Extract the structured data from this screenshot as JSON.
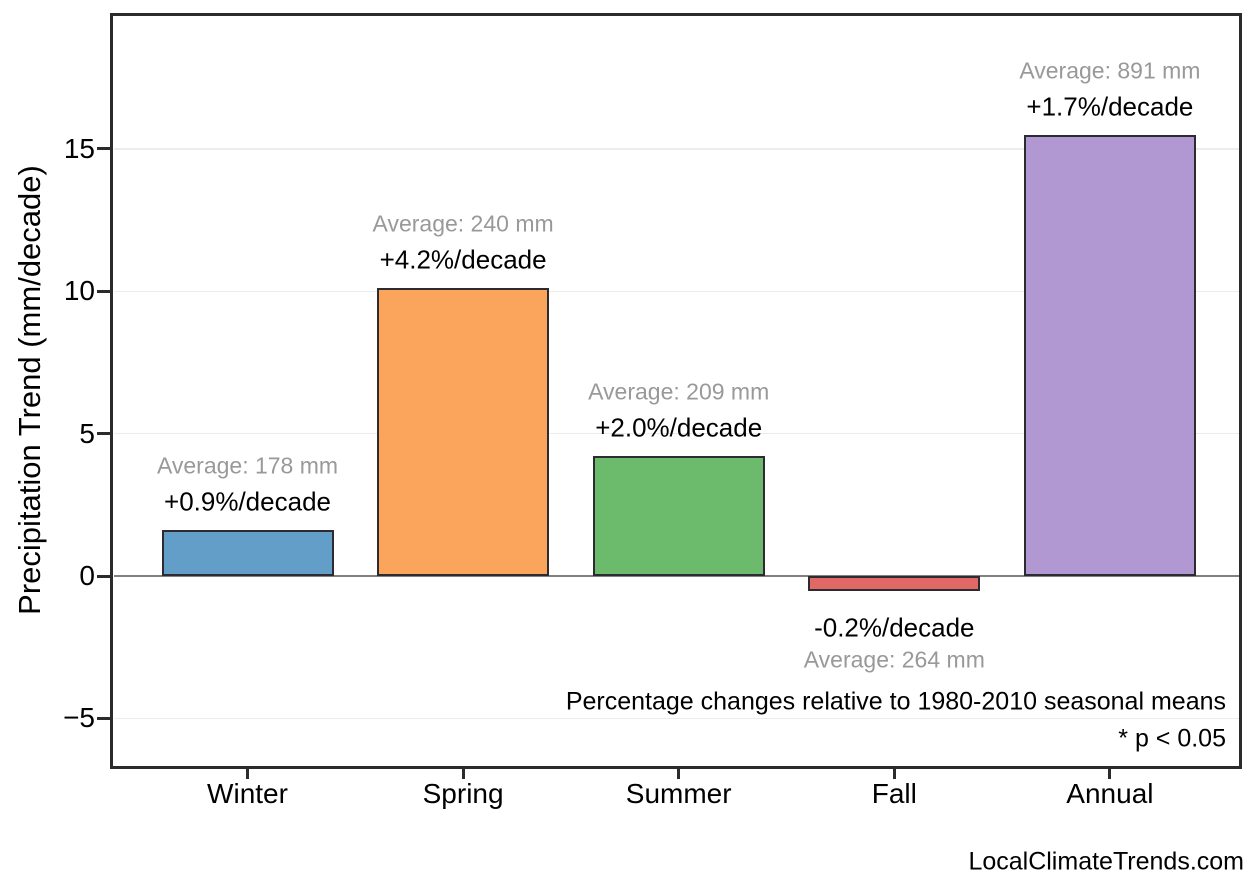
{
  "chart_data": {
    "type": "bar",
    "title": "",
    "xlabel": "",
    "ylabel": "Precipitation Trend (mm/decade)",
    "categories": [
      "Winter",
      "Spring",
      "Summer",
      "Fall",
      "Annual"
    ],
    "values": [
      1.6,
      10.1,
      4.2,
      -0.53,
      15.5
    ],
    "bar_colors": [
      "#629EC8",
      "#FAA45C",
      "#6CBB6C",
      "#E16965",
      "#B298D3"
    ],
    "bar_edge_color": "#2b2b31",
    "annotations": [
      {
        "category": "Winter",
        "avg_label": "Average: 178 mm",
        "pct_label": "+0.9%/decade",
        "avg_mm": 178,
        "pct_per_decade": 0.9
      },
      {
        "category": "Spring",
        "avg_label": "Average: 240 mm",
        "pct_label": "+4.2%/decade",
        "avg_mm": 240,
        "pct_per_decade": 4.2
      },
      {
        "category": "Summer",
        "avg_label": "Average: 209 mm",
        "pct_label": "+2.0%/decade",
        "avg_mm": 209,
        "pct_per_decade": 2.0
      },
      {
        "category": "Fall",
        "avg_label": "Average: 264 mm",
        "pct_label": "-0.2%/decade",
        "avg_mm": 264,
        "pct_per_decade": -0.2
      },
      {
        "category": "Annual",
        "avg_label": "Average: 891 mm",
        "pct_label": "+1.7%/decade",
        "avg_mm": 891,
        "pct_per_decade": 1.7
      }
    ],
    "yticks": [
      {
        "value": 15,
        "label": "15"
      },
      {
        "value": 10,
        "label": "10"
      },
      {
        "value": 5,
        "label": "5"
      },
      {
        "value": 0,
        "label": "0"
      },
      {
        "value": -5,
        "label": "−5"
      }
    ],
    "ylim": [
      -6.8,
      19.7
    ],
    "grid": {
      "horizontal": true,
      "gridline_color": "#ececec",
      "zero_line_color": "#808080"
    },
    "legend": "none",
    "footnote_line1": "Percentage changes relative to 1980-2010 seasonal means",
    "footnote_line2": "* p < 0.05",
    "watermark": "LocalClimateTrends.com",
    "text_colors": {
      "avg_label": "#999999",
      "pct_label": "#000000"
    }
  }
}
